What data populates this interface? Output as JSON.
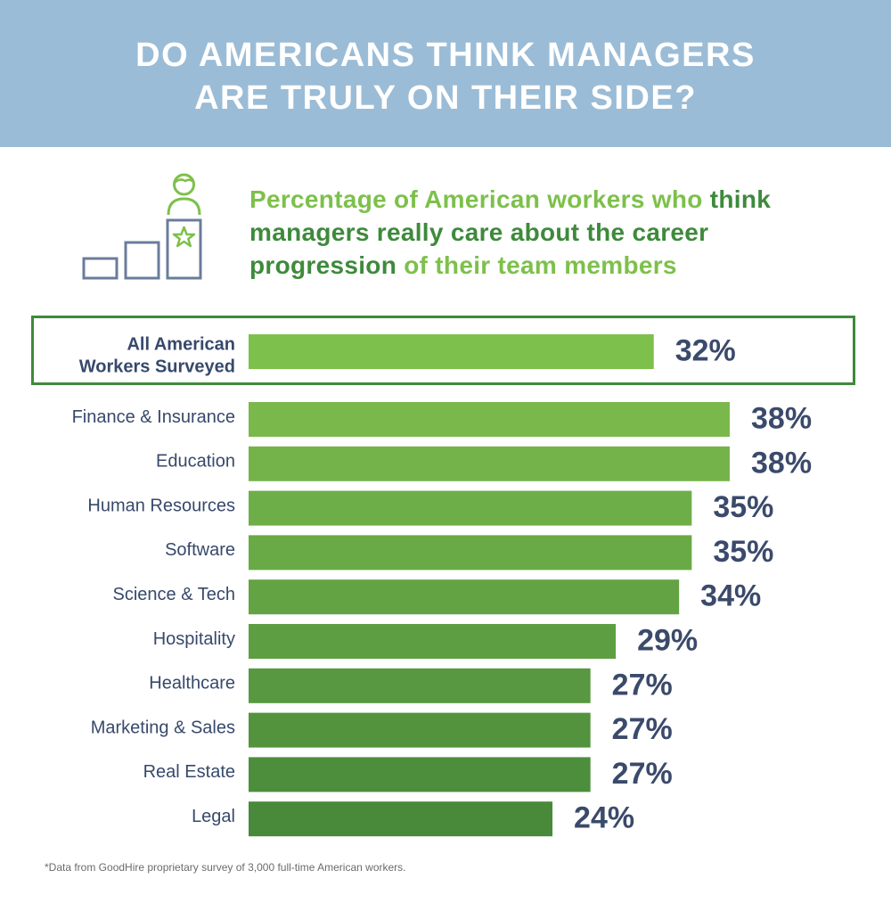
{
  "header": {
    "title_line1": "DO AMERICANS THINK MANAGERS",
    "title_line2": "ARE TRULY ON THEIR SIDE?"
  },
  "subtitle": {
    "line1_light": "Percentage of American workers who ",
    "line1_dark": "think",
    "line2_dark": "managers really care about the career",
    "line3_dark": "progression",
    "line3_light": " of their team members"
  },
  "footnote": "*Data from GoodHire proprietary survey of 3,000 full-time American workers.",
  "colors": {
    "banner": "#9bbcd6",
    "accent_light": "#7dc04b",
    "accent_dark": "#3e8a3c",
    "label_text": "#37496b",
    "value_text": "#3b4a6b"
  },
  "icon": "career-podium-icon",
  "chart_data": {
    "type": "bar",
    "orientation": "horizontal",
    "value_format": "percent",
    "highlight": {
      "label_line1": "All American",
      "label_line2": "Workers Surveyed",
      "value": 32,
      "value_label": "32%"
    },
    "categories": [
      "Finance & Insurance",
      "Education",
      "Human Resources",
      "Software",
      "Science & Tech",
      "Hospitality",
      "Healthcare",
      "Marketing & Sales",
      "Real Estate",
      "Legal"
    ],
    "values": [
      38,
      38,
      35,
      35,
      34,
      29,
      27,
      27,
      27,
      24
    ],
    "value_labels": [
      "38%",
      "38%",
      "35%",
      "35%",
      "34%",
      "29%",
      "27%",
      "27%",
      "27%",
      "24%"
    ],
    "bar_colors": [
      "#7ab84c",
      "#74b34a",
      "#6eae48",
      "#69a946",
      "#63a344",
      "#5e9e42",
      "#589840",
      "#53933e",
      "#4d8e3c",
      "#48893a"
    ]
  }
}
